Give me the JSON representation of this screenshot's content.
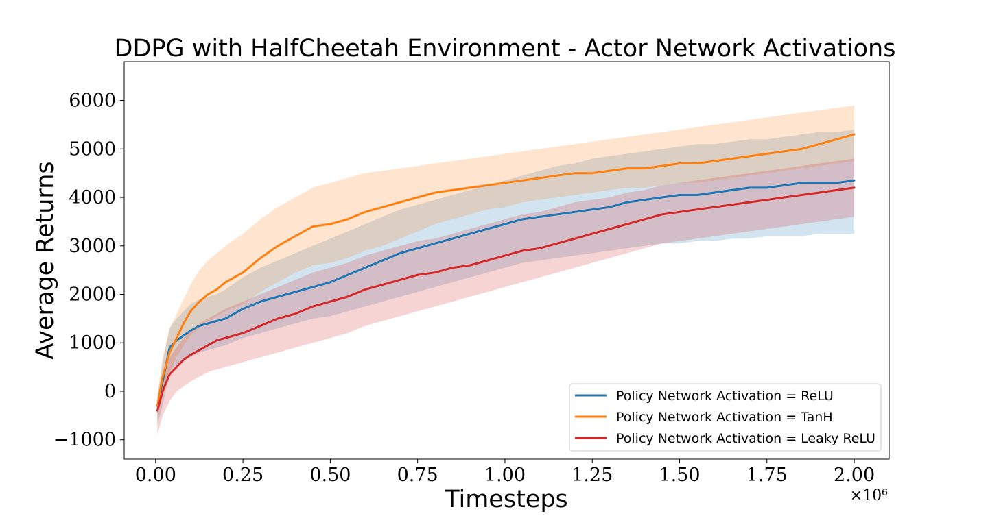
{
  "chart_data": {
    "type": "line",
    "title": "DDPG with HalfCheetah Environment - Actor Network Activations",
    "xlabel": "Timesteps",
    "ylabel": "Average Returns",
    "x_offset_label": "×10⁶",
    "xlim": [
      -0.09,
      2.1
    ],
    "ylim": [
      -1400,
      6800
    ],
    "xticks": [
      0.0,
      0.25,
      0.5,
      0.75,
      1.0,
      1.25,
      1.5,
      1.75,
      2.0
    ],
    "xtick_labels": [
      "0.00",
      "0.25",
      "0.50",
      "0.75",
      "1.00",
      "1.25",
      "1.50",
      "1.75",
      "2.00"
    ],
    "yticks": [
      -1000,
      0,
      1000,
      2000,
      3000,
      4000,
      5000,
      6000
    ],
    "ytick_labels": [
      "−1000",
      "0",
      "1000",
      "2000",
      "3000",
      "4000",
      "5000",
      "6000"
    ],
    "grid": false,
    "legend_position": "bottom-right",
    "shaded_band": "min-max range across seeds (approx.)",
    "series": [
      {
        "name": "Policy Network Activation = ReLU",
        "color": "#1f77b4",
        "x": [
          0.005,
          0.02,
          0.04,
          0.06,
          0.08,
          0.1,
          0.125,
          0.15,
          0.175,
          0.2,
          0.25,
          0.3,
          0.35,
          0.4,
          0.45,
          0.5,
          0.55,
          0.6,
          0.65,
          0.7,
          0.75,
          0.8,
          0.85,
          0.9,
          0.95,
          1.0,
          1.05,
          1.1,
          1.15,
          1.2,
          1.25,
          1.3,
          1.35,
          1.4,
          1.45,
          1.5,
          1.55,
          1.6,
          1.65,
          1.7,
          1.75,
          1.8,
          1.85,
          1.9,
          1.95,
          2.0
        ],
        "mean": [
          -300,
          200,
          900,
          1050,
          1150,
          1250,
          1350,
          1400,
          1450,
          1500,
          1700,
          1850,
          1950,
          2050,
          2150,
          2250,
          2400,
          2550,
          2700,
          2850,
          2950,
          3050,
          3150,
          3250,
          3350,
          3450,
          3550,
          3600,
          3650,
          3700,
          3750,
          3800,
          3900,
          3950,
          4000,
          4050,
          4050,
          4100,
          4150,
          4200,
          4200,
          4250,
          4300,
          4300,
          4300,
          4350
        ],
        "upper": [
          -100,
          600,
          1300,
          1500,
          1650,
          1800,
          1900,
          1950,
          2000,
          2100,
          2350,
          2550,
          2700,
          2850,
          3000,
          3150,
          3300,
          3450,
          3600,
          3750,
          3850,
          3950,
          4050,
          4150,
          4250,
          4350,
          4450,
          4550,
          4650,
          4700,
          4800,
          4850,
          4900,
          4950,
          5000,
          5050,
          5100,
          5100,
          5150,
          5200,
          5200,
          5250,
          5300,
          5350,
          5350,
          5400
        ],
        "lower": [
          -700,
          -300,
          400,
          550,
          650,
          700,
          800,
          850,
          900,
          950,
          1100,
          1200,
          1300,
          1400,
          1500,
          1550,
          1650,
          1750,
          1850,
          1950,
          2050,
          2150,
          2250,
          2350,
          2450,
          2550,
          2650,
          2700,
          2750,
          2800,
          2850,
          2900,
          2950,
          3000,
          3050,
          3050,
          3100,
          3100,
          3150,
          3150,
          3200,
          3200,
          3200,
          3250,
          3250,
          3250
        ]
      },
      {
        "name": "Policy Network Activation = TanH",
        "color": "#ff7f0e",
        "x": [
          0.005,
          0.02,
          0.04,
          0.06,
          0.08,
          0.1,
          0.125,
          0.15,
          0.175,
          0.2,
          0.25,
          0.3,
          0.35,
          0.4,
          0.45,
          0.5,
          0.55,
          0.6,
          0.65,
          0.7,
          0.75,
          0.8,
          0.85,
          0.9,
          0.95,
          1.0,
          1.05,
          1.1,
          1.15,
          1.2,
          1.25,
          1.3,
          1.35,
          1.4,
          1.45,
          1.5,
          1.55,
          1.6,
          1.65,
          1.7,
          1.75,
          1.8,
          1.85,
          1.9,
          1.95,
          2.0
        ],
        "mean": [
          -300,
          300,
          800,
          1100,
          1400,
          1650,
          1850,
          2000,
          2100,
          2250,
          2450,
          2750,
          3000,
          3200,
          3400,
          3450,
          3550,
          3700,
          3800,
          3900,
          4000,
          4100,
          4150,
          4200,
          4250,
          4300,
          4350,
          4400,
          4450,
          4500,
          4500,
          4550,
          4600,
          4600,
          4650,
          4700,
          4700,
          4750,
          4800,
          4850,
          4900,
          4950,
          5000,
          5100,
          5200,
          5300
        ],
        "upper": [
          -100,
          700,
          1300,
          1600,
          1900,
          2200,
          2500,
          2700,
          2850,
          3000,
          3250,
          3550,
          3800,
          4000,
          4200,
          4300,
          4400,
          4500,
          4550,
          4600,
          4650,
          4700,
          4750,
          4800,
          4850,
          4900,
          4950,
          5000,
          5050,
          5100,
          5150,
          5200,
          5250,
          5300,
          5350,
          5400,
          5450,
          5500,
          5550,
          5600,
          5650,
          5700,
          5750,
          5800,
          5850,
          5900
        ],
        "lower": [
          -600,
          -100,
          400,
          700,
          950,
          1150,
          1300,
          1450,
          1550,
          1650,
          1800,
          2050,
          2250,
          2450,
          2600,
          2650,
          2750,
          2900,
          3000,
          3150,
          3300,
          3450,
          3550,
          3650,
          3750,
          3800,
          3900,
          3950,
          4000,
          4050,
          4100,
          4150,
          4200,
          4200,
          4250,
          4300,
          4300,
          4350,
          4400,
          4450,
          4500,
          4550,
          4600,
          4650,
          4700,
          4750
        ]
      },
      {
        "name": "Policy Network Activation = Leaky ReLU",
        "color": "#d62728",
        "x": [
          0.005,
          0.02,
          0.04,
          0.06,
          0.08,
          0.1,
          0.125,
          0.15,
          0.175,
          0.2,
          0.25,
          0.3,
          0.35,
          0.4,
          0.45,
          0.5,
          0.55,
          0.6,
          0.65,
          0.7,
          0.75,
          0.8,
          0.85,
          0.9,
          0.95,
          1.0,
          1.05,
          1.1,
          1.15,
          1.2,
          1.25,
          1.3,
          1.35,
          1.4,
          1.45,
          1.5,
          1.55,
          1.6,
          1.65,
          1.7,
          1.75,
          1.8,
          1.85,
          1.9,
          1.95,
          2.0
        ],
        "mean": [
          -400,
          0,
          350,
          500,
          650,
          750,
          850,
          950,
          1050,
          1100,
          1200,
          1350,
          1500,
          1600,
          1750,
          1850,
          1950,
          2100,
          2200,
          2300,
          2400,
          2450,
          2550,
          2600,
          2700,
          2800,
          2900,
          2950,
          3050,
          3150,
          3250,
          3350,
          3450,
          3550,
          3650,
          3700,
          3750,
          3800,
          3850,
          3900,
          3950,
          4000,
          4050,
          4100,
          4150,
          4200
        ],
        "upper": [
          -150,
          300,
          700,
          900,
          1100,
          1250,
          1400,
          1500,
          1600,
          1700,
          1850,
          2000,
          2150,
          2300,
          2450,
          2550,
          2650,
          2800,
          2900,
          3000,
          3100,
          3150,
          3250,
          3350,
          3450,
          3550,
          3650,
          3700,
          3800,
          3900,
          3950,
          4000,
          4100,
          4150,
          4250,
          4300,
          4350,
          4400,
          4450,
          4500,
          4550,
          4600,
          4650,
          4700,
          4750,
          4800
        ],
        "lower": [
          -900,
          -500,
          -200,
          0,
          100,
          200,
          300,
          400,
          450,
          500,
          600,
          700,
          800,
          900,
          1000,
          1100,
          1200,
          1350,
          1450,
          1550,
          1650,
          1750,
          1850,
          1950,
          2050,
          2150,
          2250,
          2350,
          2450,
          2550,
          2650,
          2750,
          2850,
          2950,
          3050,
          3100,
          3150,
          3200,
          3250,
          3300,
          3350,
          3400,
          3450,
          3500,
          3550,
          3600
        ]
      }
    ]
  }
}
